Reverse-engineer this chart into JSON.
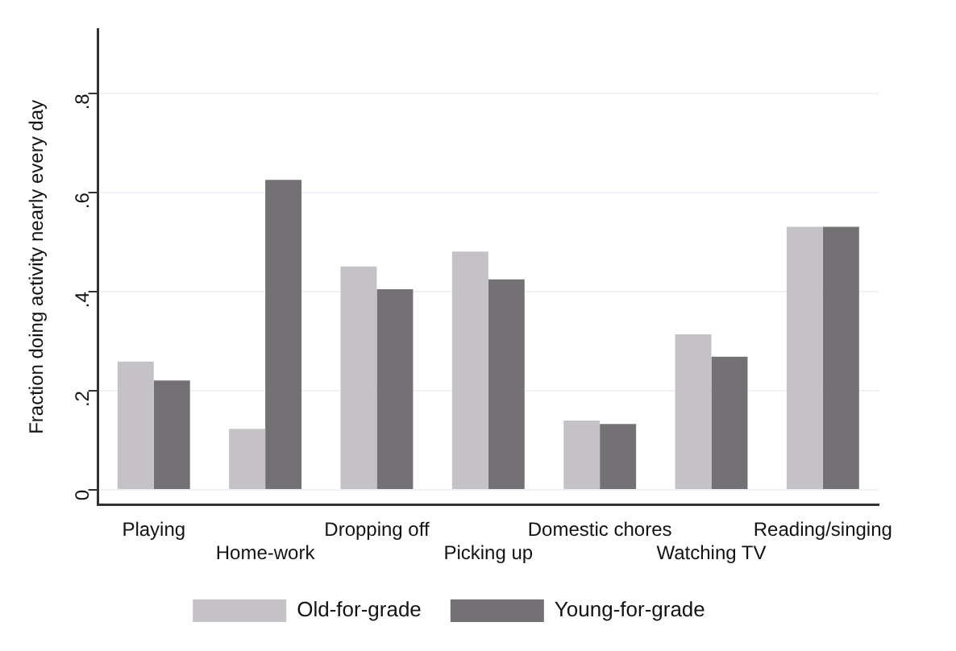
{
  "chart_data": {
    "type": "bar",
    "ylabel": "Fraction doing activity nearly every day",
    "categories": [
      "Playing",
      "Home-work",
      "Dropping off",
      "Picking up",
      "Domestic chores",
      "Watching TV",
      "Reading/singing"
    ],
    "series": [
      {
        "name": "Old-for-grade",
        "color": "#c4c2c6",
        "values": [
          0.259,
          0.123,
          0.451,
          0.481,
          0.14,
          0.314,
          0.531
        ]
      },
      {
        "name": "Young-for-grade",
        "color": "#737173",
        "values": [
          0.221,
          0.626,
          0.405,
          0.425,
          0.133,
          0.269,
          0.531
        ]
      }
    ],
    "ylim": [
      -0.03,
      0.93
    ],
    "yticks": [
      0,
      {
        "value": 0.2,
        "label": ".2"
      },
      {
        "value": 0.4,
        "label": ".4"
      },
      {
        "value": 0.6,
        "label": ".6"
      },
      {
        "value": 0.8,
        "label": ".8"
      }
    ],
    "grid": "y",
    "legend": "bottom"
  }
}
